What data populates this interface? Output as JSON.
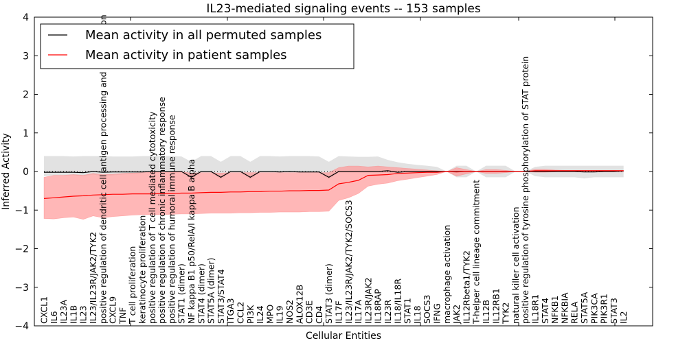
{
  "chart_data": {
    "type": "line",
    "title": "IL23-mediated signaling events -- 153 samples",
    "xlabel": "Cellular Entities",
    "ylabel": "Inferred Activity",
    "ylim": [
      -4,
      4
    ],
    "yticks": [
      "4",
      "3",
      "2",
      "1",
      "0",
      "−1",
      "−2",
      "−3",
      "−4"
    ],
    "ytick_values": [
      4,
      3,
      2,
      1,
      0,
      -1,
      -2,
      -3,
      -4
    ],
    "grid": false,
    "legend": {
      "placement": "top-left",
      "entries": [
        {
          "label": "Mean activity in all permuted samples",
          "color": "#000000"
        },
        {
          "label": "Mean activity in patient samples",
          "color": "#ff0000"
        }
      ]
    },
    "colors": {
      "permuted_line": "#000000",
      "permuted_band": "#d3d3d3",
      "patient_line": "#ff0000",
      "patient_band": "#ff9999",
      "zero_line": "#000000"
    },
    "categories": [
      "CXCL1",
      "IL6",
      "IL23A",
      "IL1B",
      "IL23",
      "IL23/IL23R/JAK2/TYK2",
      "positive regulation of dendritic cell antigen processing and presentation",
      "CXCL9",
      "TNF",
      "T cell proliferation",
      "keratinocyte proliferation",
      "positive regulation of T cell mediated cytotoxicity",
      "positive regulation of chronic inflammatory response",
      "positive regulation of humoral immune response",
      "STAT1 (dimer)",
      "NF kappa B1 p50/RelA/I kappa B alpha",
      "STAT4 (dimer)",
      "STAT5A (dimer)",
      "STAT3/STAT4",
      "ITGA3",
      "CCL2",
      "PI3K",
      "IL24",
      "MPO",
      "IL19",
      "NOS2",
      "ALOX12B",
      "CD3E",
      "CD4",
      "STAT3 (dimer)",
      "IL17F",
      "IL23/IL23R/JAK2/TYK2/SOCS3",
      "IL17A",
      "IL23R/JAK2",
      "IL18RAP",
      "IL23R",
      "IL18/IL18R",
      "STAT1",
      "IL18",
      "SOCS3",
      "IFNG",
      "macrophage activation",
      "JAK2",
      "IL12Rbeta1/TYK2",
      "T-helper cell lineage commitment",
      "IL12B",
      "IL12RB1",
      "TYK2",
      "natural killer cell activation",
      "positive regulation of tyrosine phosphorylation of STAT protein",
      "IL18R1",
      "STAT4",
      "NFKB1",
      "NFKBIA",
      "RELA",
      "STAT5A",
      "PIK3CA",
      "PIK3R1",
      "STAT3",
      "IL2"
    ],
    "series": [
      {
        "name": "Mean activity in all permuted samples",
        "values": [
          -0.02,
          -0.02,
          -0.02,
          -0.02,
          -0.03,
          0.0,
          -0.02,
          -0.01,
          -0.01,
          -0.01,
          -0.01,
          0.0,
          0.0,
          0.0,
          0.0,
          -0.15,
          0.0,
          0.0,
          -0.15,
          0.0,
          0.0,
          -0.15,
          0.0,
          0.0,
          -0.01,
          0.0,
          -0.01,
          -0.01,
          -0.01,
          -0.15,
          0.0,
          0.0,
          0.0,
          0.0,
          0.0,
          0.02,
          -0.02,
          0.0,
          0.0,
          0.0,
          0.0,
          0.0,
          0.0,
          0.0,
          0.0,
          0.0,
          0.0,
          0.0,
          0.0,
          0.0,
          0.0,
          0.0,
          0.0,
          0.0,
          0.0,
          -0.01,
          -0.01,
          0.0,
          0.0,
          0.01
        ],
        "upper": [
          0.4,
          0.4,
          0.4,
          0.39,
          0.4,
          0.4,
          0.4,
          0.39,
          0.39,
          0.39,
          0.4,
          0.4,
          0.4,
          0.4,
          0.39,
          0.25,
          0.4,
          0.4,
          0.25,
          0.4,
          0.4,
          0.25,
          0.4,
          0.4,
          0.39,
          0.4,
          0.4,
          0.4,
          0.39,
          0.25,
          0.4,
          0.39,
          0.38,
          0.38,
          0.39,
          0.3,
          0.24,
          0.2,
          0.17,
          0.15,
          0.12,
          0.0,
          0.15,
          0.15,
          0.0,
          0.15,
          0.15,
          0.15,
          0.0,
          0.0,
          0.12,
          0.15,
          0.15,
          0.15,
          0.15,
          0.15,
          0.15,
          0.15,
          0.15,
          0.15
        ],
        "lower": [
          -0.12,
          -0.1,
          -0.1,
          -0.1,
          -0.12,
          -0.08,
          -0.12,
          -0.1,
          -0.08,
          -0.06,
          -0.04,
          -0.02,
          -0.02,
          -0.02,
          -0.02,
          -0.2,
          -0.03,
          -0.03,
          -0.2,
          -0.03,
          -0.03,
          -0.2,
          -0.03,
          -0.03,
          -0.03,
          -0.03,
          -0.03,
          -0.03,
          -0.03,
          -0.2,
          -0.03,
          -0.03,
          -0.03,
          -0.03,
          -0.03,
          -0.03,
          -0.04,
          -0.03,
          -0.02,
          -0.02,
          -0.02,
          0.0,
          -0.15,
          -0.15,
          0.0,
          -0.15,
          -0.15,
          -0.15,
          0.0,
          0.0,
          -0.12,
          -0.15,
          -0.15,
          -0.15,
          -0.15,
          -0.18,
          -0.15,
          -0.15,
          -0.15,
          -0.15
        ]
      },
      {
        "name": "Mean activity in patient samples",
        "values": [
          -0.7,
          -0.68,
          -0.66,
          -0.64,
          -0.63,
          -0.61,
          -0.6,
          -0.59,
          -0.59,
          -0.58,
          -0.58,
          -0.58,
          -0.57,
          -0.57,
          -0.56,
          -0.56,
          -0.55,
          -0.54,
          -0.54,
          -0.53,
          -0.53,
          -0.52,
          -0.52,
          -0.51,
          -0.51,
          -0.5,
          -0.5,
          -0.49,
          -0.49,
          -0.48,
          -0.32,
          -0.28,
          -0.23,
          -0.1,
          -0.09,
          -0.08,
          -0.05,
          -0.04,
          -0.03,
          -0.02,
          -0.02,
          0.0,
          -0.01,
          0.0,
          0.0,
          0.0,
          0.0,
          0.0,
          0.0,
          0.0,
          0.02,
          0.02,
          0.02,
          0.02,
          0.02,
          0.02,
          0.02,
          0.02,
          0.02,
          0.02
        ],
        "upper": [
          -0.15,
          -0.1,
          -0.1,
          -0.08,
          -0.1,
          -0.05,
          -0.08,
          -0.07,
          -0.05,
          -0.04,
          -0.03,
          -0.02,
          -0.02,
          -0.02,
          -0.01,
          -0.04,
          -0.03,
          -0.03,
          -0.04,
          -0.03,
          -0.03,
          -0.03,
          -0.03,
          -0.03,
          -0.03,
          -0.03,
          -0.03,
          -0.03,
          -0.03,
          -0.03,
          0.1,
          0.14,
          0.14,
          0.12,
          0.14,
          0.12,
          0.1,
          0.08,
          0.06,
          0.04,
          0.02,
          0.0,
          0.1,
          0.05,
          0.0,
          0.05,
          0.05,
          0.03,
          0.0,
          0.0,
          0.06,
          0.06,
          0.04,
          0.03,
          0.03,
          0.03,
          0.03,
          0.03,
          0.03,
          0.03
        ],
        "lower": [
          -1.22,
          -1.23,
          -1.2,
          -1.18,
          -1.24,
          -1.15,
          -1.2,
          -1.17,
          -1.15,
          -1.13,
          -1.12,
          -1.12,
          -1.12,
          -1.11,
          -1.1,
          -1.1,
          -1.09,
          -1.08,
          -1.08,
          -1.08,
          -1.07,
          -1.07,
          -1.06,
          -1.06,
          -1.05,
          -1.05,
          -1.05,
          -1.04,
          -1.04,
          -1.03,
          -0.75,
          -0.68,
          -0.57,
          -0.38,
          -0.33,
          -0.3,
          -0.24,
          -0.2,
          -0.16,
          -0.12,
          -0.08,
          0.0,
          -0.12,
          -0.06,
          0.0,
          -0.05,
          -0.05,
          -0.03,
          0.0,
          0.0,
          -0.02,
          -0.02,
          -0.01,
          0.01,
          0.01,
          0.01,
          0.01,
          0.01,
          0.01,
          0.01
        ]
      }
    ]
  }
}
